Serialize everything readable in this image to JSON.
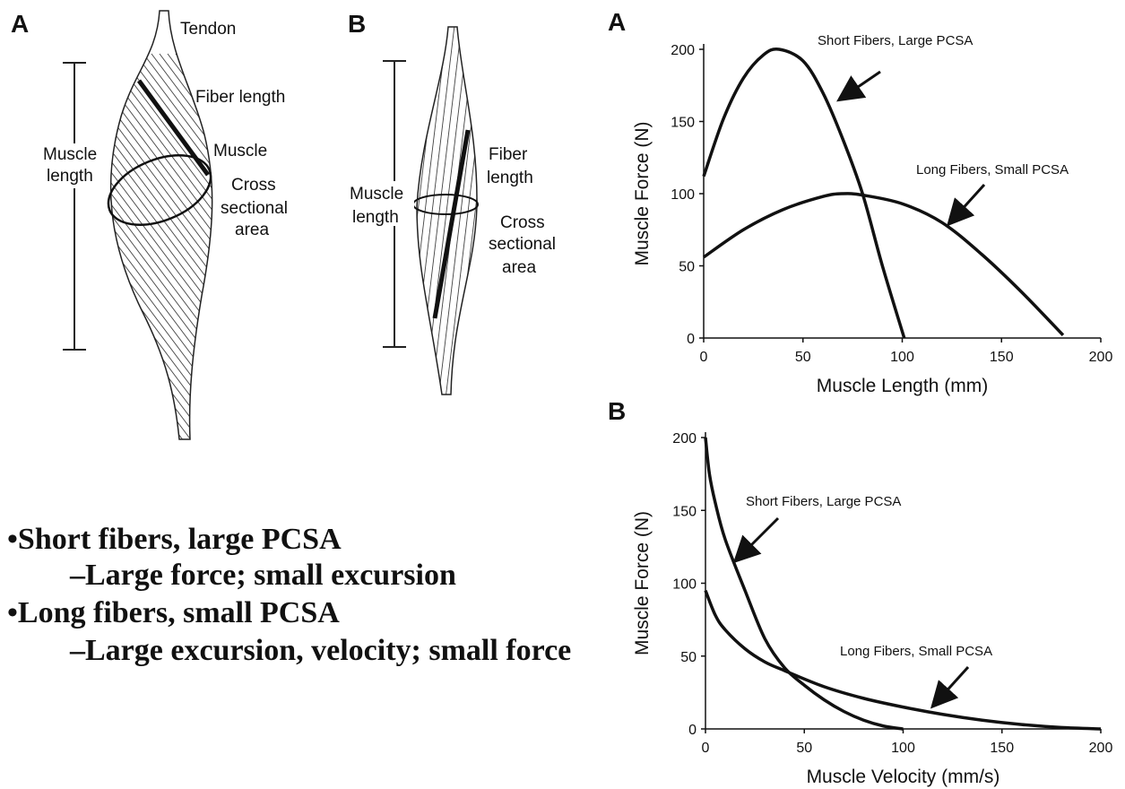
{
  "diagrams": [
    {
      "label": "A",
      "tendon": "Tendon",
      "fiber_length": "Fiber length",
      "cross_section": [
        "Muscle",
        "Cross",
        "sectional",
        "area"
      ],
      "muscle_length": [
        "Muscle",
        "length"
      ]
    },
    {
      "label": "B",
      "fiber_length": [
        "Fiber",
        "length"
      ],
      "cross_section": [
        "Cross",
        "sectional",
        "area"
      ],
      "muscle_length": [
        "Muscle",
        "length"
      ]
    }
  ],
  "bullets": [
    {
      "text": "•Short fibers, large PCSA",
      "sub": "–Large force; small excursion"
    },
    {
      "text": "•Long fibers, small PCSA",
      "sub": "–Large excursion, velocity; small force"
    }
  ],
  "chart_data": [
    {
      "type": "line",
      "title": "A",
      "x_label": "Muscle Length (mm)",
      "y_label": "Muscle Force (N)",
      "xlim": [
        0,
        200
      ],
      "ylim": [
        0,
        200
      ],
      "xticks": [
        0,
        50,
        100,
        150,
        200
      ],
      "yticks": [
        0,
        50,
        100,
        150,
        200
      ],
      "series": [
        {
          "name": "Short Fibers, Large PCSA",
          "color": "#111111",
          "x": [
            0,
            10,
            20,
            30,
            38,
            50,
            60,
            70,
            80,
            90,
            101
          ],
          "values": [
            112,
            152,
            180,
            196,
            200,
            192,
            170,
            138,
            100,
            50,
            0
          ]
        },
        {
          "name": "Long Fibers, Small PCSA",
          "color": "#111111",
          "x": [
            0,
            20,
            40,
            60,
            70,
            80,
            100,
            120,
            140,
            160,
            181
          ],
          "values": [
            56,
            75,
            89,
            98,
            100,
            99,
            93,
            80,
            58,
            32,
            2
          ]
        }
      ]
    },
    {
      "type": "line",
      "title": "B",
      "x_label": "Muscle Velocity (mm/s)",
      "y_label": "Muscle Force (N)",
      "xlim": [
        0,
        200
      ],
      "ylim": [
        0,
        200
      ],
      "xticks": [
        0,
        50,
        100,
        150,
        200
      ],
      "yticks": [
        0,
        50,
        100,
        150,
        200
      ],
      "series": [
        {
          "name": "Short Fibers, Large PCSA",
          "color": "#111111",
          "x": [
            0,
            2,
            5,
            10,
            20,
            30,
            40,
            50,
            60,
            70,
            80,
            90,
            100
          ],
          "values": [
            200,
            175,
            155,
            130,
            95,
            62,
            42,
            30,
            20,
            12,
            6,
            2,
            0
          ]
        },
        {
          "name": "Long Fibers, Small PCSA",
          "color": "#111111",
          "x": [
            0,
            5,
            10,
            20,
            30,
            40,
            60,
            80,
            100,
            120,
            140,
            160,
            180,
            200
          ],
          "values": [
            95,
            78,
            68,
            55,
            46,
            40,
            29,
            21,
            15,
            10,
            6,
            3,
            1,
            0
          ]
        }
      ]
    }
  ]
}
